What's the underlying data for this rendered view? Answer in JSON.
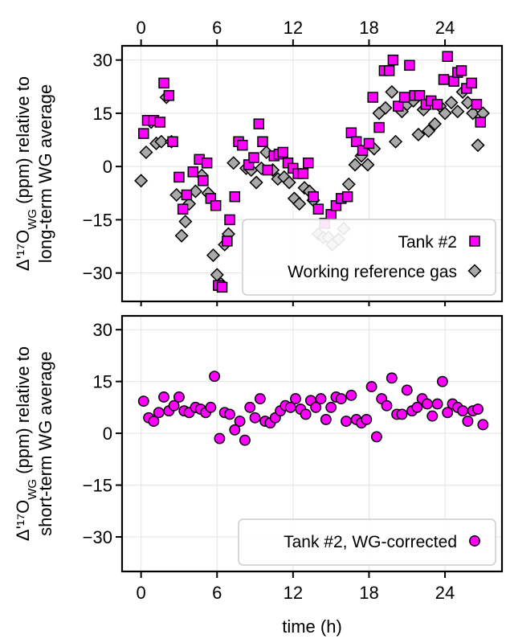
{
  "chart_data": [
    {
      "type": "scatter",
      "panel": "top",
      "ylabel_line1": "Δ'¹⁷O",
      "ylabel_sub": "WG",
      "ylabel_line1_rest": " (ppm) relative to",
      "ylabel_line2": "long-term WG average",
      "xlim": [
        -1.5,
        28.5
      ],
      "ylim": [
        -38,
        34
      ],
      "xticks": [
        0,
        6,
        12,
        18,
        24
      ],
      "yticks": [
        30,
        15,
        0,
        -15,
        -30
      ],
      "ytick_labels": [
        "30",
        "15",
        "0",
        "−15",
        "−30"
      ],
      "xtick_labels_top": [
        "0",
        "6",
        "12",
        "18",
        "24"
      ],
      "grid": true,
      "legend_placement": "lower-right",
      "series": [
        {
          "name": "Tank #2",
          "marker": "square",
          "color": "#ff00ff",
          "points": [
            [
              0.2,
              9.3
            ],
            [
              0.5,
              13
            ],
            [
              1.0,
              13
            ],
            [
              1.5,
              12.5
            ],
            [
              1.8,
              23.5
            ],
            [
              2.2,
              20
            ],
            [
              2.5,
              7
            ],
            [
              3.0,
              -3
            ],
            [
              3.3,
              -12
            ],
            [
              3.6,
              -8
            ],
            [
              4.1,
              -1.5
            ],
            [
              4.6,
              2
            ],
            [
              4.9,
              -4
            ],
            [
              5.2,
              1
            ],
            [
              5.5,
              -9
            ],
            [
              5.9,
              -11
            ],
            [
              6.1,
              -33.5
            ],
            [
              6.4,
              -34
            ],
            [
              6.8,
              -21
            ],
            [
              7.0,
              -15
            ],
            [
              7.4,
              -8.5
            ],
            [
              7.7,
              7
            ],
            [
              8.0,
              6
            ],
            [
              8.5,
              0.5
            ],
            [
              8.9,
              2.5
            ],
            [
              9.3,
              12
            ],
            [
              9.6,
              7
            ],
            [
              10.0,
              -1
            ],
            [
              10.5,
              3
            ],
            [
              10.9,
              3.5
            ],
            [
              11.2,
              4
            ],
            [
              11.6,
              1
            ],
            [
              12.0,
              -0.5
            ],
            [
              12.4,
              -2
            ],
            [
              12.8,
              -2
            ],
            [
              13.2,
              1
            ],
            [
              13.6,
              -8.5
            ],
            [
              14.0,
              -12
            ],
            [
              14.5,
              -16
            ],
            [
              15.0,
              -13.5
            ],
            [
              15.4,
              -11
            ],
            [
              15.8,
              -9
            ],
            [
              16.3,
              -8.5
            ],
            [
              16.6,
              9.5
            ],
            [
              17.0,
              7
            ],
            [
              17.5,
              4.5
            ],
            [
              18.0,
              6.5
            ],
            [
              18.3,
              19.5
            ],
            [
              18.8,
              11
            ],
            [
              19.2,
              27
            ],
            [
              19.6,
              27
            ],
            [
              19.9,
              30
            ],
            [
              20.3,
              17
            ],
            [
              20.8,
              19.5
            ],
            [
              21.2,
              28.5
            ],
            [
              21.6,
              20
            ],
            [
              22.0,
              20
            ],
            [
              22.5,
              17.5
            ],
            [
              22.9,
              18.5
            ],
            [
              23.4,
              17.5
            ],
            [
              23.9,
              24.5
            ],
            [
              24.2,
              31
            ],
            [
              24.7,
              24
            ],
            [
              25.0,
              26.5
            ],
            [
              25.3,
              27
            ],
            [
              25.7,
              22
            ],
            [
              26.1,
              23.5
            ],
            [
              26.5,
              17.5
            ],
            [
              26.8,
              12.5
            ]
          ]
        },
        {
          "name": "Working reference gas",
          "marker": "diamond",
          "color": "#a9a9a9",
          "points": [
            [
              0.0,
              -4
            ],
            [
              0.4,
              4
            ],
            [
              0.8,
              12.5
            ],
            [
              1.2,
              6.5
            ],
            [
              1.6,
              7
            ],
            [
              2.0,
              19.5
            ],
            [
              2.4,
              7
            ],
            [
              2.8,
              -8
            ],
            [
              3.2,
              -19.5
            ],
            [
              3.5,
              -15.5
            ],
            [
              3.8,
              -10.5
            ],
            [
              4.3,
              -7
            ],
            [
              4.8,
              -2.5
            ],
            [
              5.3,
              -7.5
            ],
            [
              5.7,
              -25
            ],
            [
              6.0,
              -30.5
            ],
            [
              6.3,
              -33
            ],
            [
              6.6,
              -22
            ],
            [
              6.9,
              -19
            ],
            [
              7.3,
              1
            ],
            [
              7.8,
              6.5
            ],
            [
              8.3,
              -0.5
            ],
            [
              8.7,
              -1
            ],
            [
              9.1,
              -4.5
            ],
            [
              9.5,
              -0.5
            ],
            [
              9.9,
              4
            ],
            [
              10.4,
              -1
            ],
            [
              10.8,
              -3.5
            ],
            [
              11.3,
              -3
            ],
            [
              11.7,
              -4.5
            ],
            [
              12.1,
              -9
            ],
            [
              12.5,
              -10.5
            ],
            [
              12.9,
              -6
            ],
            [
              13.3,
              -7
            ],
            [
              13.6,
              -9.5
            ],
            [
              14.0,
              -19
            ],
            [
              14.4,
              -20
            ],
            [
              14.8,
              -20
            ],
            [
              15.1,
              -22
            ],
            [
              15.6,
              -20.5
            ],
            [
              16.0,
              -17.5
            ],
            [
              16.4,
              -5
            ],
            [
              16.9,
              0.5
            ],
            [
              17.4,
              3
            ],
            [
              17.9,
              0.5
            ],
            [
              18.4,
              5
            ],
            [
              18.8,
              15
            ],
            [
              19.3,
              16.5
            ],
            [
              19.8,
              21
            ],
            [
              20.1,
              7
            ],
            [
              20.6,
              15.5
            ],
            [
              21.0,
              17.5
            ],
            [
              21.5,
              18.5
            ],
            [
              21.9,
              9
            ],
            [
              22.3,
              16
            ],
            [
              22.7,
              10
            ],
            [
              23.2,
              12
            ],
            [
              23.6,
              17
            ],
            [
              24.0,
              15
            ],
            [
              24.5,
              18
            ],
            [
              25.0,
              15.5
            ],
            [
              25.4,
              21
            ],
            [
              25.8,
              18
            ],
            [
              26.2,
              15
            ],
            [
              26.6,
              6
            ],
            [
              27.0,
              15
            ]
          ]
        }
      ]
    },
    {
      "type": "scatter",
      "panel": "bottom",
      "ylabel_line1": "Δ'¹⁷O",
      "ylabel_sub": "WG",
      "ylabel_line1_rest": " (ppm) relative to",
      "ylabel_line2": "short-term WG average",
      "xlabel": "time (h)",
      "xlim": [
        -1.5,
        28.5
      ],
      "ylim": [
        -40,
        34
      ],
      "xticks": [
        0,
        6,
        12,
        18,
        24
      ],
      "xtick_labels": [
        "0",
        "6",
        "12",
        "18",
        "24"
      ],
      "yticks": [
        30,
        15,
        0,
        -15,
        -30
      ],
      "ytick_labels": [
        "30",
        "15",
        "0",
        "−15",
        "−30"
      ],
      "grid": true,
      "legend_placement": "lower-right",
      "series": [
        {
          "name": "Tank #2, WG-corrected",
          "marker": "circle",
          "color": "#ff00ff",
          "points": [
            [
              0.2,
              9.3
            ],
            [
              0.6,
              4.5
            ],
            [
              1.0,
              3.5
            ],
            [
              1.4,
              6
            ],
            [
              1.8,
              10.5
            ],
            [
              2.2,
              6.5
            ],
            [
              2.6,
              8
            ],
            [
              3.0,
              10.5
            ],
            [
              3.4,
              6.5
            ],
            [
              3.8,
              6
            ],
            [
              4.3,
              7.5
            ],
            [
              4.7,
              7
            ],
            [
              5.1,
              6
            ],
            [
              5.5,
              7.5
            ],
            [
              5.8,
              16.5
            ],
            [
              6.2,
              -1.5
            ],
            [
              6.6,
              6
            ],
            [
              7.0,
              5.5
            ],
            [
              7.4,
              1
            ],
            [
              7.8,
              3.5
            ],
            [
              8.2,
              -2
            ],
            [
              8.6,
              7.5
            ],
            [
              9.0,
              4.5
            ],
            [
              9.4,
              10
            ],
            [
              9.8,
              3.5
            ],
            [
              10.2,
              3
            ],
            [
              10.6,
              4.5
            ],
            [
              11.0,
              6.5
            ],
            [
              11.4,
              8
            ],
            [
              11.8,
              7.5
            ],
            [
              12.2,
              10
            ],
            [
              12.6,
              7
            ],
            [
              13.0,
              5.5
            ],
            [
              13.4,
              9.5
            ],
            [
              13.8,
              7.5
            ],
            [
              14.2,
              10
            ],
            [
              14.6,
              4
            ],
            [
              15.0,
              7.5
            ],
            [
              15.4,
              10.5
            ],
            [
              15.8,
              10
            ],
            [
              16.2,
              3.5
            ],
            [
              16.6,
              11
            ],
            [
              17.0,
              4
            ],
            [
              17.4,
              3
            ],
            [
              17.8,
              4
            ],
            [
              18.2,
              13.5
            ],
            [
              18.6,
              -1
            ],
            [
              19.0,
              10
            ],
            [
              19.4,
              8
            ],
            [
              19.8,
              16
            ],
            [
              20.2,
              5.5
            ],
            [
              20.6,
              5.5
            ],
            [
              21.0,
              12.5
            ],
            [
              21.4,
              6.5
            ],
            [
              21.8,
              7.5
            ],
            [
              22.2,
              10
            ],
            [
              22.6,
              8.5
            ],
            [
              23.0,
              5
            ],
            [
              23.4,
              8.5
            ],
            [
              23.8,
              15
            ],
            [
              24.2,
              6
            ],
            [
              24.6,
              8.5
            ],
            [
              25.0,
              7.5
            ],
            [
              25.4,
              6.5
            ],
            [
              25.8,
              3.5
            ],
            [
              26.2,
              6.5
            ],
            [
              26.6,
              7
            ],
            [
              27.0,
              2.5
            ]
          ]
        }
      ]
    }
  ]
}
